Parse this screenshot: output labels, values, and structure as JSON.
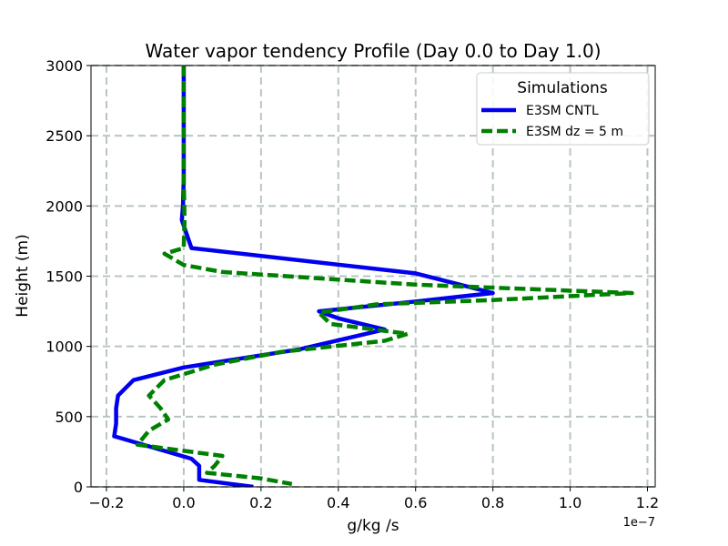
{
  "chart_data": {
    "type": "line",
    "title": "Water vapor tendency Profile (Day 0.0 to Day 1.0)",
    "xlabel": "g/kg /s",
    "ylabel": "Height (m)",
    "x_offset_label": "1e−7",
    "xlim": [
      -0.24,
      1.22
    ],
    "ylim": [
      0,
      3000
    ],
    "xticks": [
      -0.2,
      0.0,
      0.2,
      0.4,
      0.6,
      0.8,
      1.0,
      1.2
    ],
    "xtick_labels": [
      "−0.2",
      "0.0",
      "0.2",
      "0.4",
      "0.6",
      "0.8",
      "1.0",
      "1.2"
    ],
    "yticks": [
      0,
      500,
      1000,
      1500,
      2000,
      2500,
      3000
    ],
    "ytick_labels": [
      "0",
      "500",
      "1000",
      "1500",
      "2000",
      "2500",
      "3000"
    ],
    "grid": true,
    "legend": {
      "title": "Simulations",
      "position": "top-right"
    },
    "series": [
      {
        "name": "E3SM CNTL",
        "color": "#0000ee",
        "style": "solid",
        "points": [
          [
            0.0,
            3000
          ],
          [
            0.0,
            2500
          ],
          [
            0.0,
            2200
          ],
          [
            -0.002,
            2000
          ],
          [
            -0.005,
            1900
          ],
          [
            0.02,
            1700
          ],
          [
            0.6,
            1520
          ],
          [
            0.8,
            1380
          ],
          [
            0.6,
            1320
          ],
          [
            0.35,
            1250
          ],
          [
            0.4,
            1200
          ],
          [
            0.52,
            1120
          ],
          [
            0.3,
            980
          ],
          [
            0.0,
            850
          ],
          [
            -0.13,
            760
          ],
          [
            -0.17,
            650
          ],
          [
            -0.175,
            560
          ],
          [
            -0.175,
            450
          ],
          [
            -0.18,
            360
          ],
          [
            0.02,
            200
          ],
          [
            0.04,
            150
          ],
          [
            0.04,
            50
          ],
          [
            0.18,
            0
          ]
        ]
      },
      {
        "name": "E3SM dz = 5 m",
        "color": "#008000",
        "style": "dashed",
        "points": [
          [
            0.0,
            3000
          ],
          [
            0.0,
            2600
          ],
          [
            0.0,
            2200
          ],
          [
            0.002,
            1900
          ],
          [
            0.0,
            1700
          ],
          [
            -0.05,
            1660
          ],
          [
            0.0,
            1580
          ],
          [
            0.1,
            1530
          ],
          [
            0.6,
            1440
          ],
          [
            1.16,
            1380
          ],
          [
            0.8,
            1330
          ],
          [
            0.5,
            1300
          ],
          [
            0.35,
            1240
          ],
          [
            0.38,
            1160
          ],
          [
            0.58,
            1090
          ],
          [
            0.52,
            1040
          ],
          [
            0.25,
            960
          ],
          [
            0.08,
            870
          ],
          [
            -0.05,
            760
          ],
          [
            -0.09,
            650
          ],
          [
            -0.06,
            560
          ],
          [
            -0.04,
            480
          ],
          [
            -0.09,
            400
          ],
          [
            -0.12,
            300
          ],
          [
            0.1,
            220
          ],
          [
            0.08,
            150
          ],
          [
            0.06,
            100
          ],
          [
            0.2,
            60
          ],
          [
            0.28,
            20
          ]
        ]
      }
    ]
  }
}
